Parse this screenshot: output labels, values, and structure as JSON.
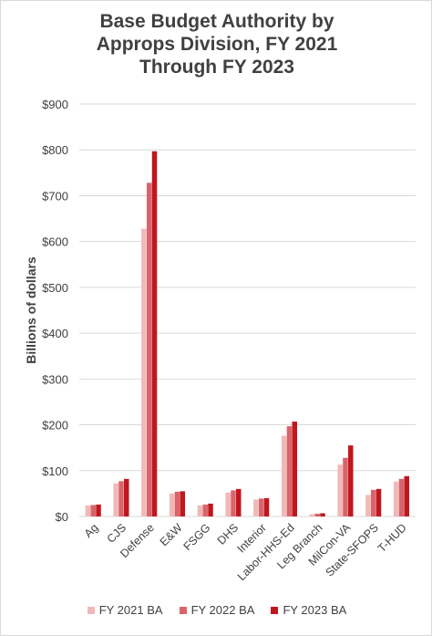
{
  "chart_data": {
    "type": "bar",
    "title_lines": [
      "Base Budget Authority by",
      "Approps Division, FY 2021",
      "Through FY 2023"
    ],
    "title": "Base Budget Authority by Approps Division, FY 2021 Through FY 2023",
    "xlabel": "",
    "ylabel": "Billions of dollars",
    "ylim": [
      0,
      900
    ],
    "yticks": [
      0,
      100,
      200,
      300,
      400,
      500,
      600,
      700,
      800,
      900
    ],
    "ytick_labels": [
      "$0",
      "$100",
      "$200",
      "$300",
      "$400",
      "$500",
      "$600",
      "$700",
      "$800",
      "$900"
    ],
    "categories": [
      "Ag",
      "CJS",
      "Defense",
      "E&W",
      "FSGG",
      "DHS",
      "Interior",
      "Labor-HHS-Ed",
      "Leg Branch",
      "MilCon-VA",
      "State-SFOPS",
      "T-HUD"
    ],
    "series": [
      {
        "name": "FY 2021 BA",
        "color": "#f2b8b8",
        "values": [
          24,
          72,
          628,
          50,
          24,
          52,
          37,
          176,
          5,
          113,
          47,
          76
        ]
      },
      {
        "name": "FY 2022 BA",
        "color": "#d9646a",
        "values": [
          25,
          77,
          728,
          54,
          26,
          57,
          39,
          197,
          6,
          128,
          58,
          82
        ]
      },
      {
        "name": "FY 2023 BA",
        "color": "#c0171e",
        "values": [
          26,
          82,
          797,
          55,
          28,
          60,
          40,
          207,
          7,
          155,
          60,
          88
        ]
      }
    ],
    "grid": true,
    "legend_position": "bottom"
  }
}
